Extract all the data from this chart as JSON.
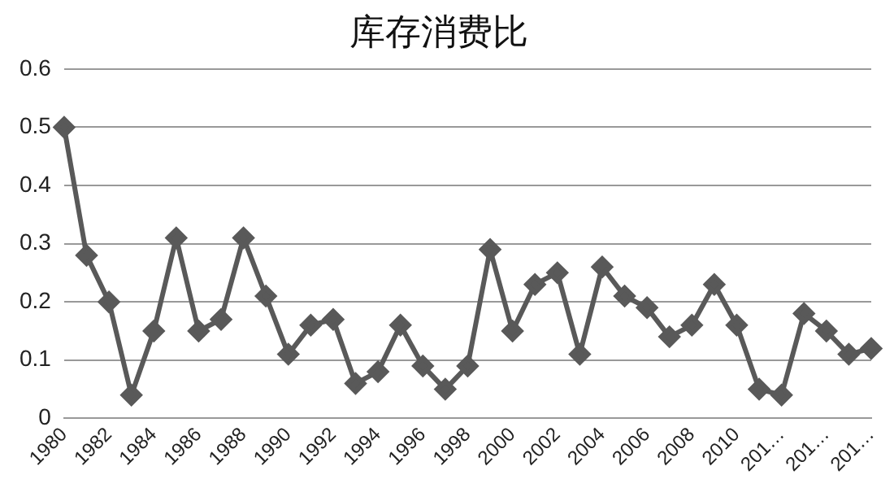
{
  "chart_data": {
    "type": "line",
    "title": "库存消费比",
    "categories": [
      "1980",
      null,
      "1982",
      null,
      "1984",
      null,
      "1986",
      null,
      "1988",
      null,
      "1990",
      null,
      "1992",
      null,
      "1994",
      null,
      "1996",
      null,
      "1998",
      null,
      "2000",
      null,
      "2002",
      null,
      "2004",
      null,
      "2006",
      null,
      "2008",
      null,
      "2010",
      null,
      "201…",
      null,
      "201…",
      null,
      "201…"
    ],
    "series": [
      {
        "color": "#595959",
        "values": [
          0.5,
          0.28,
          0.2,
          0.04,
          0.15,
          0.31,
          0.15,
          0.17,
          0.31,
          0.21,
          0.11,
          0.16,
          0.17,
          0.06,
          0.08,
          0.16,
          0.09,
          0.05,
          0.09,
          0.29,
          0.15,
          0.23,
          0.25,
          0.11,
          0.26,
          0.21,
          0.19,
          0.14,
          0.16,
          0.23,
          0.16,
          0.05,
          0.04,
          0.18,
          0.15,
          0.11,
          0.12
        ]
      }
    ],
    "ylim": [
      0,
      0.6
    ],
    "yticks": [
      0,
      0.1,
      0.2,
      0.3,
      0.4,
      0.5,
      0.6
    ],
    "grid": "y",
    "legend": false,
    "marker": "diamond",
    "line_style": "solid"
  }
}
